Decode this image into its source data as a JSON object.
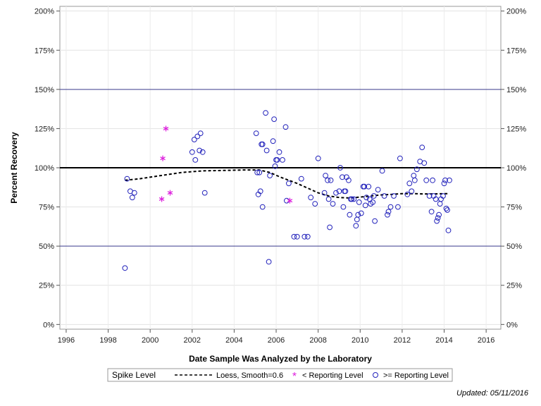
{
  "chart_data": {
    "type": "scatter",
    "title": "",
    "xlabel": "Date Sample Was Analyzed by the Laboratory",
    "ylabel": "Percent Recovery",
    "xlim": [
      1995.7,
      2016.7
    ],
    "ylim": [
      -3,
      203
    ],
    "x_ticks": [
      1996,
      1998,
      2000,
      2002,
      2004,
      2006,
      2008,
      2010,
      2012,
      2014,
      2016
    ],
    "x_tick_labels": [
      "1996",
      "1998",
      "2000",
      "2002",
      "2004",
      "2006",
      "2008",
      "2010",
      "2012",
      "2014",
      "2016"
    ],
    "y_ticks": [
      0,
      25,
      50,
      75,
      100,
      125,
      150,
      175,
      200
    ],
    "y_tick_labels": [
      "0%",
      "25%",
      "50%",
      "75%",
      "100%",
      "125%",
      "150%",
      "175%",
      "200%"
    ],
    "reference_lines": [
      {
        "y": 50,
        "style": "thin"
      },
      {
        "y": 100,
        "style": "thick"
      },
      {
        "y": 150,
        "style": "thin"
      }
    ],
    "legend": {
      "title": "Spike Level",
      "position": "bottom",
      "entries": [
        {
          "label": "Loess, Smooth=0.6",
          "symbol": "dashed-line"
        },
        {
          "label": "< Reporting Level",
          "symbol": "asterisk"
        },
        {
          "label": ">= Reporting Level",
          "symbol": "circle"
        }
      ]
    },
    "colors": {
      "circle": "#2222bb",
      "asterisk": "#dd22dd",
      "loess": "#000000"
    },
    "series": [
      {
        "name": ">= Reporting Level",
        "marker": "circle",
        "points": [
          [
            1998.8,
            36
          ],
          [
            1998.9,
            93
          ],
          [
            1999.05,
            85
          ],
          [
            1999.15,
            81
          ],
          [
            1999.25,
            84
          ],
          [
            2002.0,
            110
          ],
          [
            2002.1,
            118
          ],
          [
            2002.15,
            105
          ],
          [
            2002.25,
            120
          ],
          [
            2002.35,
            111
          ],
          [
            2002.4,
            122
          ],
          [
            2002.5,
            110
          ],
          [
            2002.6,
            84
          ],
          [
            2005.05,
            122
          ],
          [
            2005.1,
            97
          ],
          [
            2005.15,
            83
          ],
          [
            2005.2,
            97
          ],
          [
            2005.25,
            85
          ],
          [
            2005.3,
            115
          ],
          [
            2005.35,
            115
          ],
          [
            2005.35,
            75
          ],
          [
            2005.5,
            135
          ],
          [
            2005.55,
            111
          ],
          [
            2005.65,
            40
          ],
          [
            2005.7,
            95
          ],
          [
            2005.85,
            117
          ],
          [
            2005.9,
            131
          ],
          [
            2005.95,
            101
          ],
          [
            2006.0,
            105
          ],
          [
            2006.05,
            105
          ],
          [
            2006.15,
            110
          ],
          [
            2006.3,
            105
          ],
          [
            2006.45,
            126
          ],
          [
            2006.5,
            79
          ],
          [
            2006.6,
            90
          ],
          [
            2006.85,
            56
          ],
          [
            2007.0,
            56
          ],
          [
            2007.2,
            93
          ],
          [
            2007.35,
            56
          ],
          [
            2007.5,
            56
          ],
          [
            2007.65,
            81
          ],
          [
            2007.85,
            77
          ],
          [
            2008.0,
            106
          ],
          [
            2008.3,
            84
          ],
          [
            2008.35,
            95
          ],
          [
            2008.45,
            92
          ],
          [
            2008.5,
            80
          ],
          [
            2008.55,
            62
          ],
          [
            2008.6,
            92
          ],
          [
            2008.7,
            77
          ],
          [
            2008.85,
            84
          ],
          [
            2009.0,
            85
          ],
          [
            2009.05,
            100
          ],
          [
            2009.15,
            94
          ],
          [
            2009.2,
            75
          ],
          [
            2009.25,
            85
          ],
          [
            2009.3,
            85
          ],
          [
            2009.35,
            94
          ],
          [
            2009.45,
            92
          ],
          [
            2009.5,
            70
          ],
          [
            2009.55,
            80
          ],
          [
            2009.6,
            80
          ],
          [
            2009.7,
            80
          ],
          [
            2009.8,
            63
          ],
          [
            2009.85,
            67
          ],
          [
            2009.9,
            70
          ],
          [
            2009.95,
            78
          ],
          [
            2010.05,
            71
          ],
          [
            2010.15,
            88
          ],
          [
            2010.2,
            88
          ],
          [
            2010.25,
            76
          ],
          [
            2010.3,
            81
          ],
          [
            2010.4,
            88
          ],
          [
            2010.45,
            80
          ],
          [
            2010.5,
            77
          ],
          [
            2010.6,
            78
          ],
          [
            2010.65,
            82
          ],
          [
            2010.7,
            66
          ],
          [
            2010.85,
            86
          ],
          [
            2011.05,
            98
          ],
          [
            2011.15,
            82
          ],
          [
            2011.3,
            70
          ],
          [
            2011.35,
            72
          ],
          [
            2011.45,
            75
          ],
          [
            2011.6,
            82
          ],
          [
            2011.8,
            75
          ],
          [
            2011.9,
            106
          ],
          [
            2012.25,
            83
          ],
          [
            2012.35,
            90
          ],
          [
            2012.45,
            85
          ],
          [
            2012.55,
            95
          ],
          [
            2012.6,
            92
          ],
          [
            2012.7,
            99
          ],
          [
            2012.85,
            104
          ],
          [
            2012.95,
            113
          ],
          [
            2013.05,
            103
          ],
          [
            2013.15,
            92
          ],
          [
            2013.3,
            82
          ],
          [
            2013.4,
            72
          ],
          [
            2013.45,
            92
          ],
          [
            2013.5,
            82
          ],
          [
            2013.6,
            80
          ],
          [
            2013.65,
            66
          ],
          [
            2013.7,
            68
          ],
          [
            2013.75,
            70
          ],
          [
            2013.8,
            77
          ],
          [
            2013.85,
            80
          ],
          [
            2013.95,
            82
          ],
          [
            2014.0,
            90
          ],
          [
            2014.05,
            92
          ],
          [
            2014.1,
            74
          ],
          [
            2014.15,
            73
          ],
          [
            2014.2,
            60
          ],
          [
            2014.25,
            92
          ]
        ]
      },
      {
        "name": "< Reporting Level",
        "marker": "asterisk",
        "points": [
          [
            2000.55,
            80
          ],
          [
            2000.6,
            106
          ],
          [
            2000.75,
            125
          ],
          [
            2000.95,
            84
          ],
          [
            2006.65,
            79
          ]
        ]
      },
      {
        "name": "Loess, Smooth=0.6",
        "marker": "dashed-line",
        "points": [
          [
            1998.8,
            92
          ],
          [
            1999.5,
            93
          ],
          [
            2000.5,
            95
          ],
          [
            2001.5,
            97
          ],
          [
            2002.5,
            98
          ],
          [
            2003.5,
            98.3
          ],
          [
            2004.5,
            98.6
          ],
          [
            2005.2,
            98.6
          ],
          [
            2005.7,
            97
          ],
          [
            2006.2,
            94
          ],
          [
            2007.0,
            90
          ],
          [
            2007.5,
            87
          ],
          [
            2008.0,
            84
          ],
          [
            2008.5,
            82
          ],
          [
            2009.0,
            81
          ],
          [
            2009.5,
            80.7
          ],
          [
            2010.0,
            81.3
          ],
          [
            2010.5,
            82
          ],
          [
            2011.0,
            82.7
          ],
          [
            2011.5,
            83
          ],
          [
            2012.0,
            83.5
          ],
          [
            2012.5,
            83.5
          ],
          [
            2013.0,
            83.3
          ],
          [
            2013.5,
            83.3
          ],
          [
            2014.2,
            83.5
          ]
        ]
      }
    ]
  },
  "footnote": "Updated: 05/11/2016"
}
